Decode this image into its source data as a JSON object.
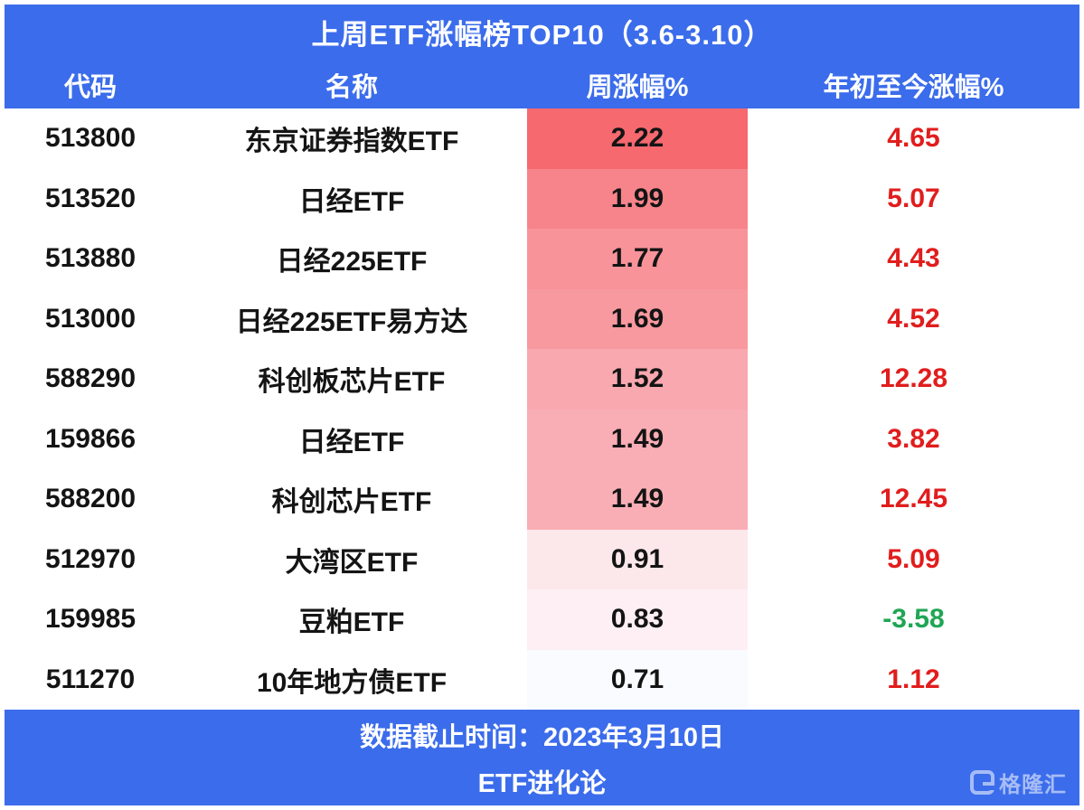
{
  "title": "上周ETF涨幅榜TOP10（3.6-3.10）",
  "columns": [
    "代码",
    "名称",
    "周涨幅%",
    "年初至今涨幅%"
  ],
  "rows": [
    {
      "code": "513800",
      "name": "东京证券指数ETF",
      "week": "2.22",
      "ytd": "4.65",
      "week_bg": "#f5696f",
      "ytd_color": "#e11d1d"
    },
    {
      "code": "513520",
      "name": "日经ETF",
      "week": "1.99",
      "ytd": "5.07",
      "week_bg": "#f7848b",
      "ytd_color": "#e11d1d"
    },
    {
      "code": "513880",
      "name": "日经225ETF",
      "week": "1.77",
      "ytd": "4.43",
      "week_bg": "#f8939a",
      "ytd_color": "#e11d1d"
    },
    {
      "code": "513000",
      "name": "日经225ETF易方达",
      "week": "1.69",
      "ytd": "4.52",
      "week_bg": "#f8989f",
      "ytd_color": "#e11d1d"
    },
    {
      "code": "588290",
      "name": "科创板芯片ETF",
      "week": "1.52",
      "ytd": "12.28",
      "week_bg": "#f9a8af",
      "ytd_color": "#e11d1d"
    },
    {
      "code": "159866",
      "name": "日经ETF",
      "week": "1.49",
      "ytd": "3.82",
      "week_bg": "#f9adb4",
      "ytd_color": "#e11d1d"
    },
    {
      "code": "588200",
      "name": "科创芯片ETF",
      "week": "1.49",
      "ytd": "12.45",
      "week_bg": "#f9aeb5",
      "ytd_color": "#e11d1d"
    },
    {
      "code": "512970",
      "name": "大湾区ETF",
      "week": "0.91",
      "ytd": "5.09",
      "week_bg": "#fce8eb",
      "ytd_color": "#e11d1d"
    },
    {
      "code": "159985",
      "name": "豆粕ETF",
      "week": "0.83",
      "ytd": "-3.58",
      "week_bg": "#fdeff3",
      "ytd_color": "#1fa654"
    },
    {
      "code": "511270",
      "name": "10年地方债ETF",
      "week": "0.71",
      "ytd": "1.12",
      "week_bg": "#fafbfe",
      "ytd_color": "#e11d1d"
    }
  ],
  "footer": {
    "line1": "数据截止时间：2023年3月10日",
    "line2": "ETF进化论",
    "logo_text": "格隆汇"
  },
  "colors": {
    "accent_blue": "#3B6CEB",
    "heat_max": "#f5696f",
    "heat_min": "#fafbfe",
    "positive_red": "#e11d1d",
    "negative_green": "#1fa654"
  },
  "chart_data": {
    "type": "table",
    "title": "上周ETF涨幅榜TOP10（3.6-3.10）",
    "categories": [
      "513800 东京证券指数ETF",
      "513520 日经ETF",
      "513880 日经225ETF",
      "513000 日经225ETF易方达",
      "588290 科创板芯片ETF",
      "159866 日经ETF",
      "588200 科创芯片ETF",
      "512970 大湾区ETF",
      "159985 豆粕ETF",
      "511270 10年地方债ETF"
    ],
    "series": [
      {
        "name": "周涨幅%",
        "values": [
          2.22,
          1.99,
          1.77,
          1.69,
          1.52,
          1.49,
          1.49,
          0.91,
          0.83,
          0.71
        ]
      },
      {
        "name": "年初至今涨幅%",
        "values": [
          4.65,
          5.07,
          4.43,
          4.52,
          12.28,
          3.82,
          12.45,
          5.09,
          -3.58,
          1.12
        ]
      }
    ]
  }
}
